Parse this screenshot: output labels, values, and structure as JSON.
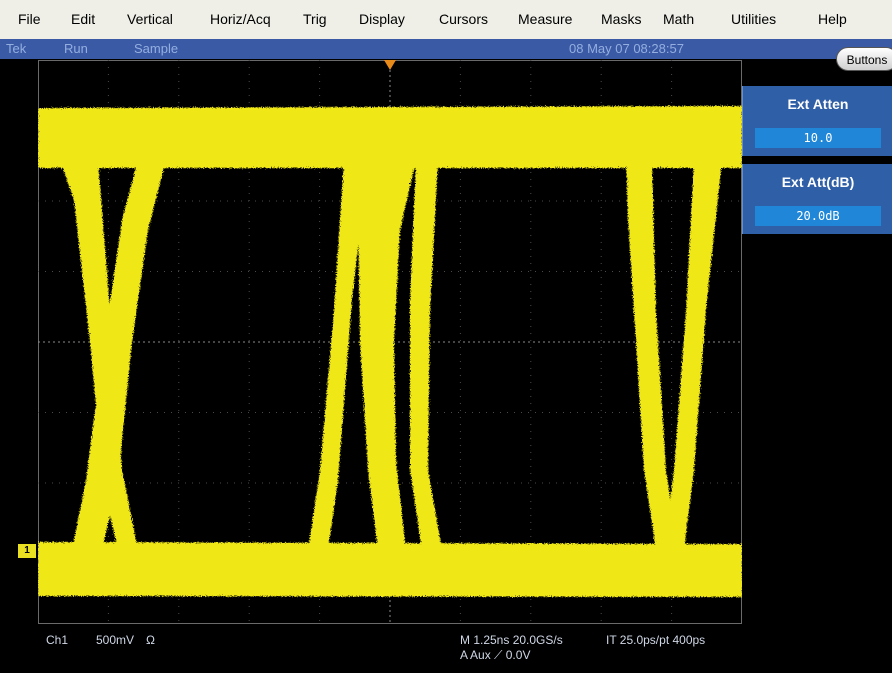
{
  "menu": {
    "file": "File",
    "edit": "Edit",
    "vertical": "Vertical",
    "horizacq": "Horiz/Acq",
    "trig": "Trig",
    "display": "Display",
    "cursors": "Cursors",
    "measure": "Measure",
    "masks": "Masks",
    "math": "Math",
    "utilities": "Utilities",
    "help": "Help"
  },
  "status": {
    "brand": "Tek",
    "run_state": "Run",
    "acq_mode": "Sample",
    "datetime": "08 May 07 08:28:57",
    "buttons_label": "Buttons"
  },
  "channel_marker": "1",
  "panel": {
    "ext_atten_title": "Ext Atten",
    "ext_atten_value": "10.0",
    "ext_att_db_title": "Ext Att(dB)",
    "ext_att_db_value": "20.0dB"
  },
  "readouts": {
    "channel": "Ch1",
    "scale": "500mV",
    "coupling": "Ω",
    "timebase": "M 1.25ns 20.0GS/s",
    "it": "IT 25.0ps/pt 400ps",
    "trigger": "A  Aux  ⟋  0.0V"
  },
  "colors": {
    "trace": "#f0e815",
    "status_bg": "#3a5aa5",
    "panel_bg": "#2f5fa6",
    "graticule": "#5a5a5a",
    "trigger_marker": "#e88a1a"
  }
}
